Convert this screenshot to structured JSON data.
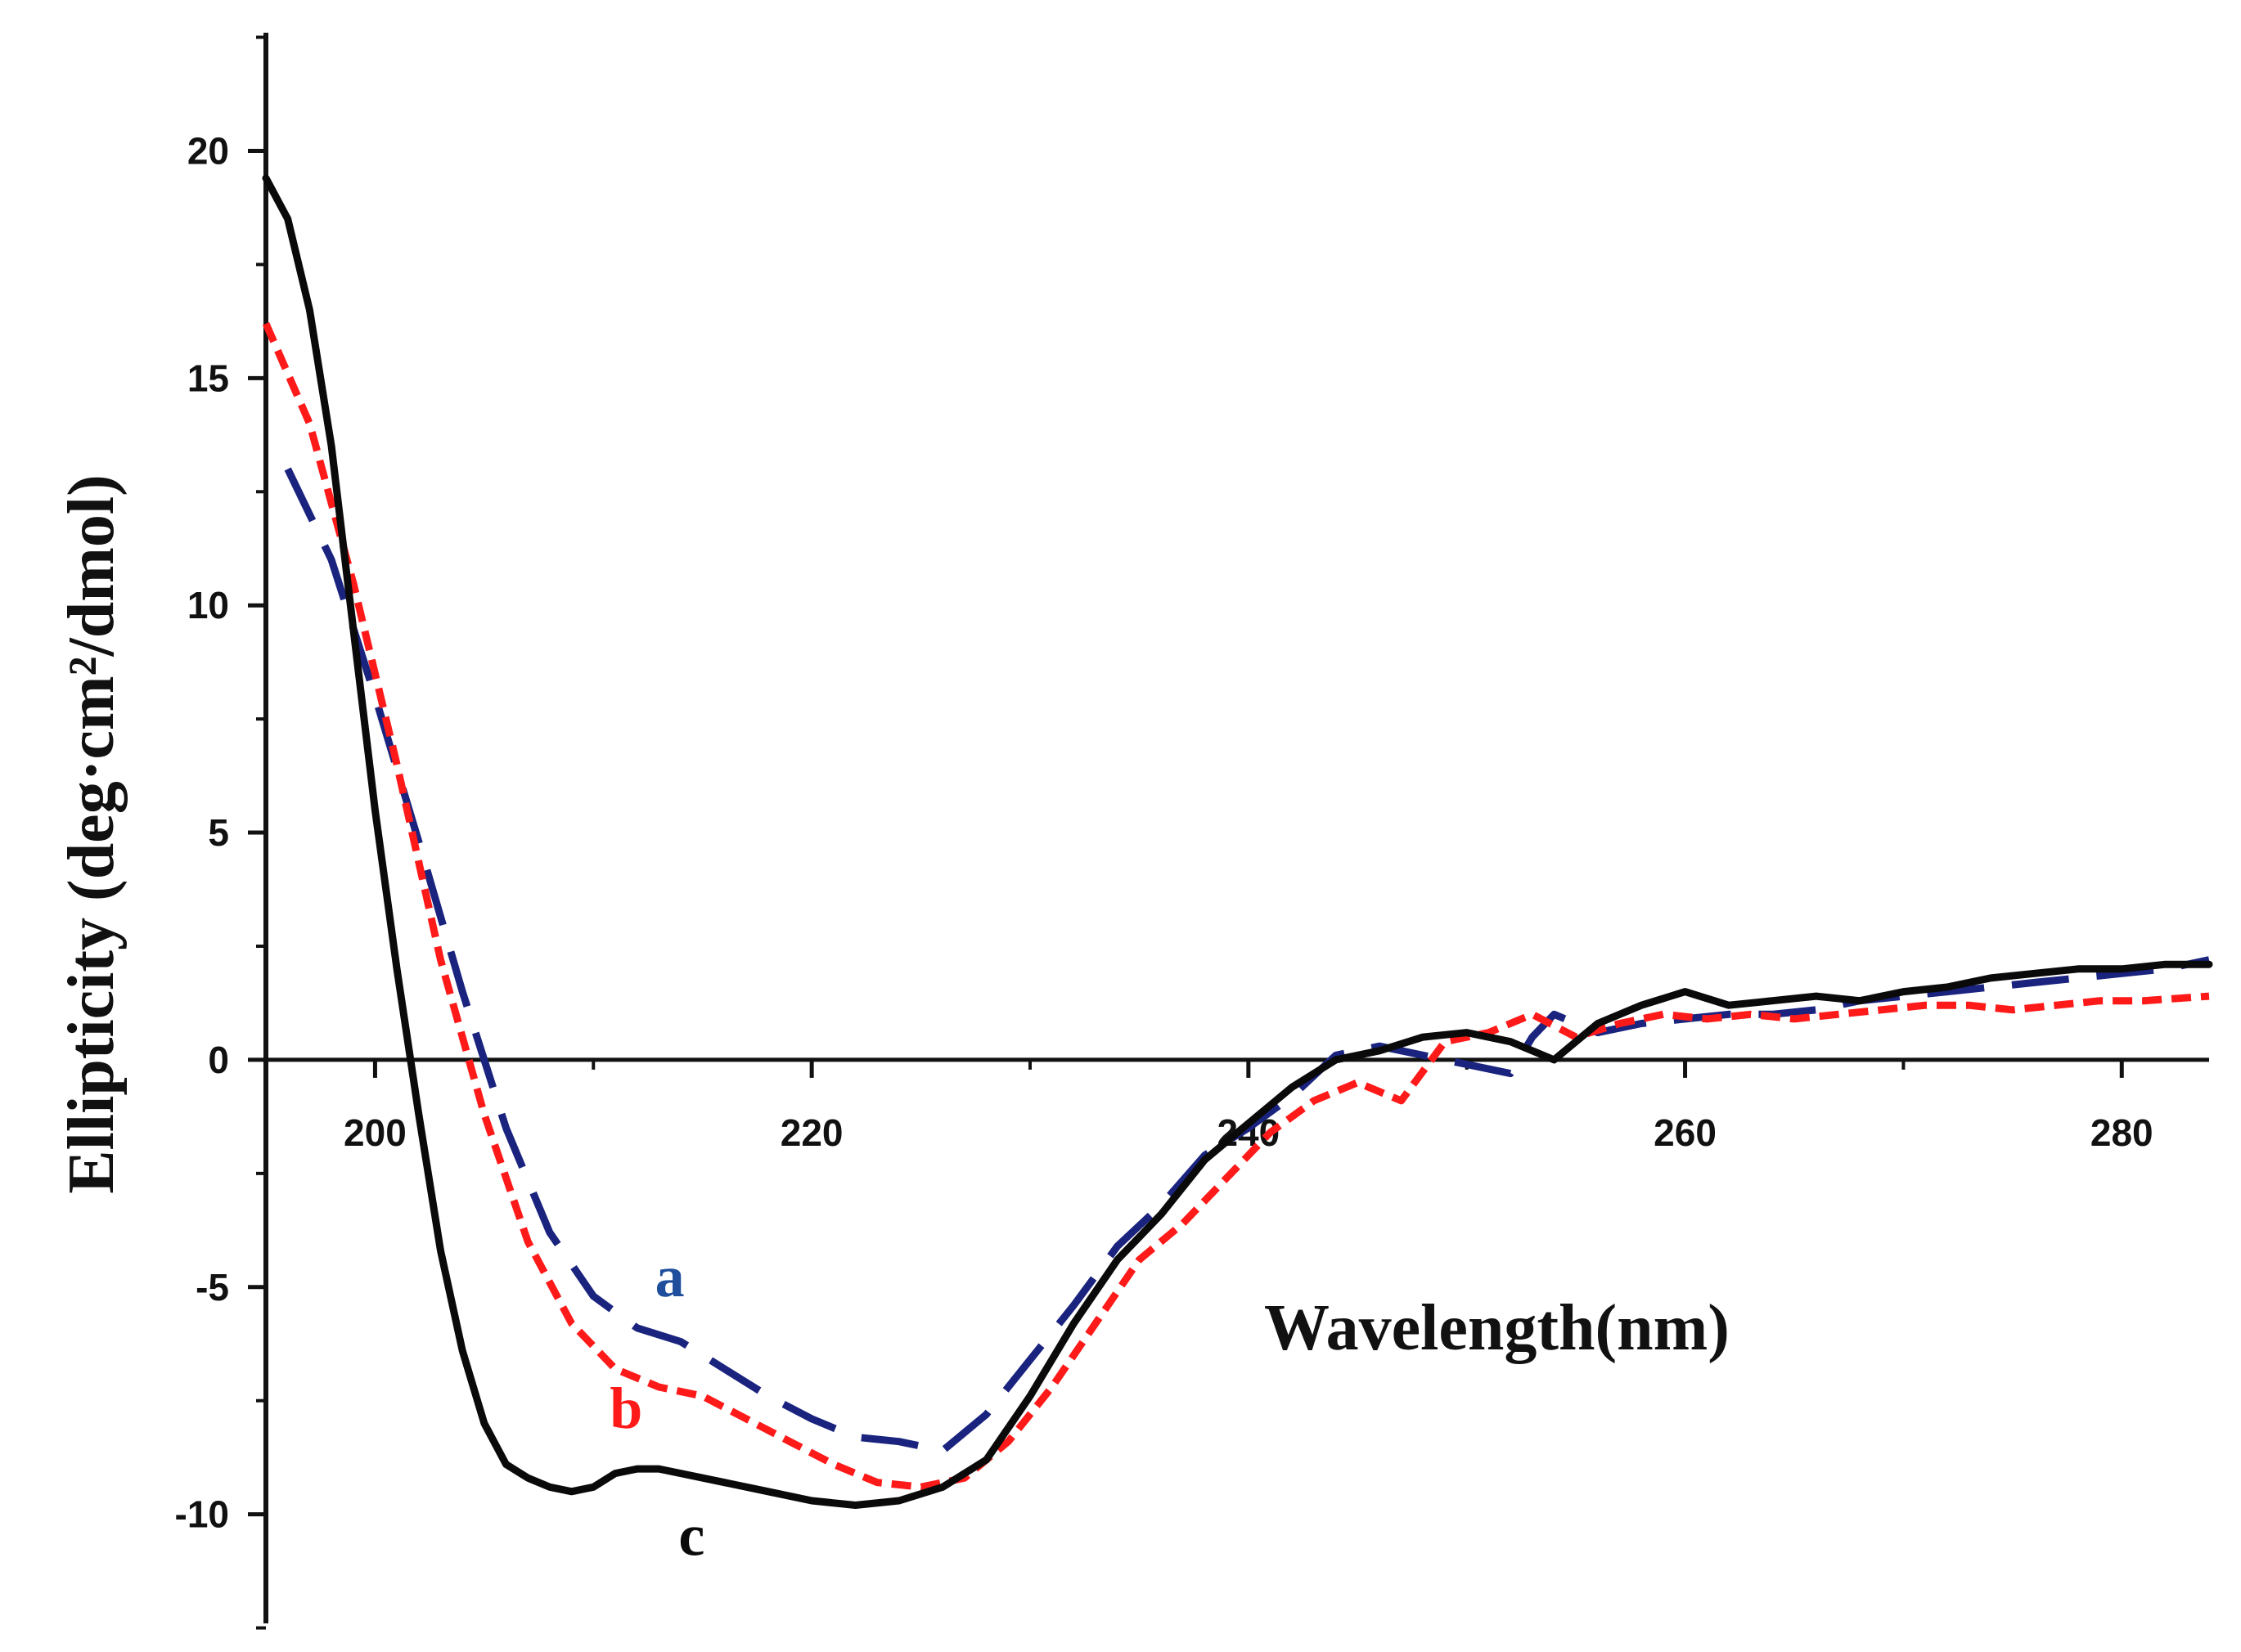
{
  "chart_data": {
    "type": "line",
    "title": "",
    "xlabel": "Wavelength(nm)",
    "ylabel": "Ellipticity (deg·cm²/dmol)",
    "xlim": [
      195,
      284
    ],
    "ylim": [
      -12.4,
      22.6
    ],
    "xticks": [
      200,
      220,
      240,
      260,
      280
    ],
    "yticks": [
      20,
      15,
      10,
      5,
      0,
      -5,
      -10
    ],
    "xtick_labels": [
      "200",
      "220",
      "240",
      "260",
      "280"
    ],
    "ytick_labels": [
      "20",
      "15",
      "10",
      "5",
      "0",
      "-5",
      "-10"
    ],
    "series": [
      {
        "name": "a",
        "label": "a",
        "color": "#1a237e",
        "label_color": "#1f4e9c",
        "style": "dashed",
        "x": [
          196,
          198,
          200,
          202,
          204,
          206,
          208,
          210,
          212,
          214,
          216,
          218,
          220,
          222,
          224,
          226,
          228,
          230,
          232,
          234,
          236,
          238,
          240,
          242,
          244,
          246,
          248,
          250,
          252,
          253,
          254,
          256,
          258,
          260,
          262,
          264,
          266,
          268,
          270,
          272,
          274,
          276,
          278,
          280,
          282,
          284
        ],
        "y": [
          13.0,
          11.0,
          8.0,
          4.8,
          1.5,
          -1.5,
          -3.8,
          -5.2,
          -5.9,
          -6.2,
          -6.8,
          -7.4,
          -7.9,
          -8.3,
          -8.4,
          -8.6,
          -7.8,
          -6.6,
          -5.4,
          -4.1,
          -3.2,
          -2.1,
          -1.5,
          -0.8,
          0.1,
          0.3,
          0.1,
          -0.1,
          -0.3,
          0.5,
          1.0,
          0.6,
          0.8,
          0.9,
          1.0,
          1.0,
          1.1,
          1.3,
          1.4,
          1.5,
          1.6,
          1.7,
          1.8,
          1.9,
          2.0,
          2.2
        ]
      },
      {
        "name": "b",
        "label": "b",
        "color": "#ff1a1a",
        "label_color": "#ff1a1a",
        "style": "dotted-dash",
        "x": [
          195,
          197,
          199,
          201,
          203,
          205,
          207,
          209,
          211,
          213,
          215,
          217,
          219,
          221,
          223,
          225,
          227,
          229,
          231,
          233,
          235,
          237,
          239,
          241,
          243,
          245,
          247,
          249,
          251,
          253,
          255,
          257,
          259,
          261,
          263,
          265,
          267,
          269,
          271,
          273,
          275,
          277,
          279,
          281,
          284
        ],
        "y": [
          16.2,
          14.0,
          10.5,
          6.5,
          2.2,
          -1.2,
          -4.0,
          -5.8,
          -6.8,
          -7.2,
          -7.4,
          -7.9,
          -8.4,
          -8.9,
          -9.3,
          -9.4,
          -9.2,
          -8.4,
          -7.2,
          -5.8,
          -4.4,
          -3.6,
          -2.6,
          -1.6,
          -0.9,
          -0.5,
          -0.9,
          0.4,
          0.6,
          1.0,
          0.5,
          0.8,
          1.0,
          0.9,
          1.0,
          0.9,
          1.0,
          1.1,
          1.2,
          1.2,
          1.1,
          1.2,
          1.3,
          1.3,
          1.4
        ]
      },
      {
        "name": "c",
        "label": "c",
        "color": "#0a0a0a",
        "label_color": "#0a0a0a",
        "style": "solid",
        "x": [
          195,
          196,
          197,
          198,
          199,
          200,
          201,
          202,
          203,
          204,
          205,
          206,
          207,
          208,
          209,
          210,
          211,
          212,
          213,
          214,
          216,
          218,
          220,
          222,
          224,
          226,
          228,
          230,
          232,
          234,
          236,
          238,
          240,
          242,
          244,
          246,
          248,
          250,
          252,
          254,
          256,
          258,
          260,
          262,
          264,
          266,
          268,
          270,
          272,
          274,
          276,
          278,
          280,
          282,
          284
        ],
        "y": [
          19.4,
          18.5,
          16.5,
          13.5,
          9.5,
          5.5,
          2.0,
          -1.2,
          -4.2,
          -6.4,
          -8.0,
          -8.9,
          -9.2,
          -9.4,
          -9.5,
          -9.4,
          -9.1,
          -9.0,
          -9.0,
          -9.1,
          -9.3,
          -9.5,
          -9.7,
          -9.8,
          -9.7,
          -9.4,
          -8.8,
          -7.4,
          -5.8,
          -4.4,
          -3.4,
          -2.2,
          -1.4,
          -0.6,
          0.0,
          0.2,
          0.5,
          0.6,
          0.4,
          0.0,
          0.8,
          1.2,
          1.5,
          1.2,
          1.3,
          1.4,
          1.3,
          1.5,
          1.6,
          1.8,
          1.9,
          2.0,
          2.0,
          2.1,
          2.1
        ]
      }
    ]
  }
}
